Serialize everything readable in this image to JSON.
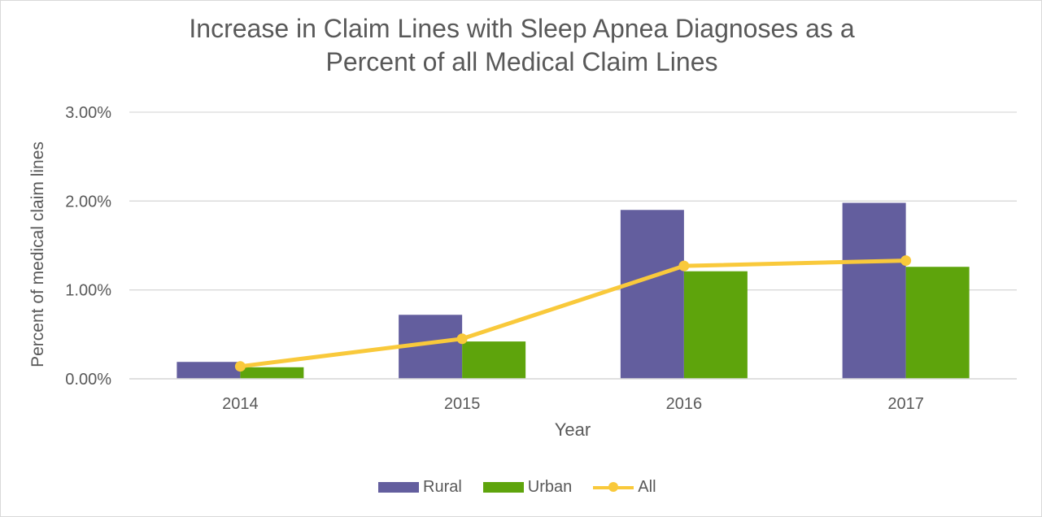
{
  "chart_data": {
    "type": "bar",
    "title_line1": "Increase in Claim Lines with Sleep Apnea Diagnoses as a",
    "title_line2": "Percent of all Medical Claim Lines",
    "xlabel": "Year",
    "ylabel": "Percent of medical claim lines",
    "categories": [
      "2014",
      "2015",
      "2016",
      "2017"
    ],
    "ylim": [
      0,
      3
    ],
    "yticks": [
      0,
      1,
      2,
      3
    ],
    "ytick_labels": [
      "0.00%",
      "1.00%",
      "2.00%",
      "3.00%"
    ],
    "grid": true,
    "legend_position": "bottom",
    "series": [
      {
        "name": "Rural",
        "kind": "bar",
        "color": "#635e9e",
        "values": [
          0.19,
          0.72,
          1.9,
          1.98
        ]
      },
      {
        "name": "Urban",
        "kind": "bar",
        "color": "#5ea40c",
        "values": [
          0.13,
          0.42,
          1.21,
          1.26
        ]
      },
      {
        "name": "All",
        "kind": "line",
        "color": "#f9c93b",
        "values": [
          0.14,
          0.45,
          1.27,
          1.33
        ]
      }
    ]
  }
}
